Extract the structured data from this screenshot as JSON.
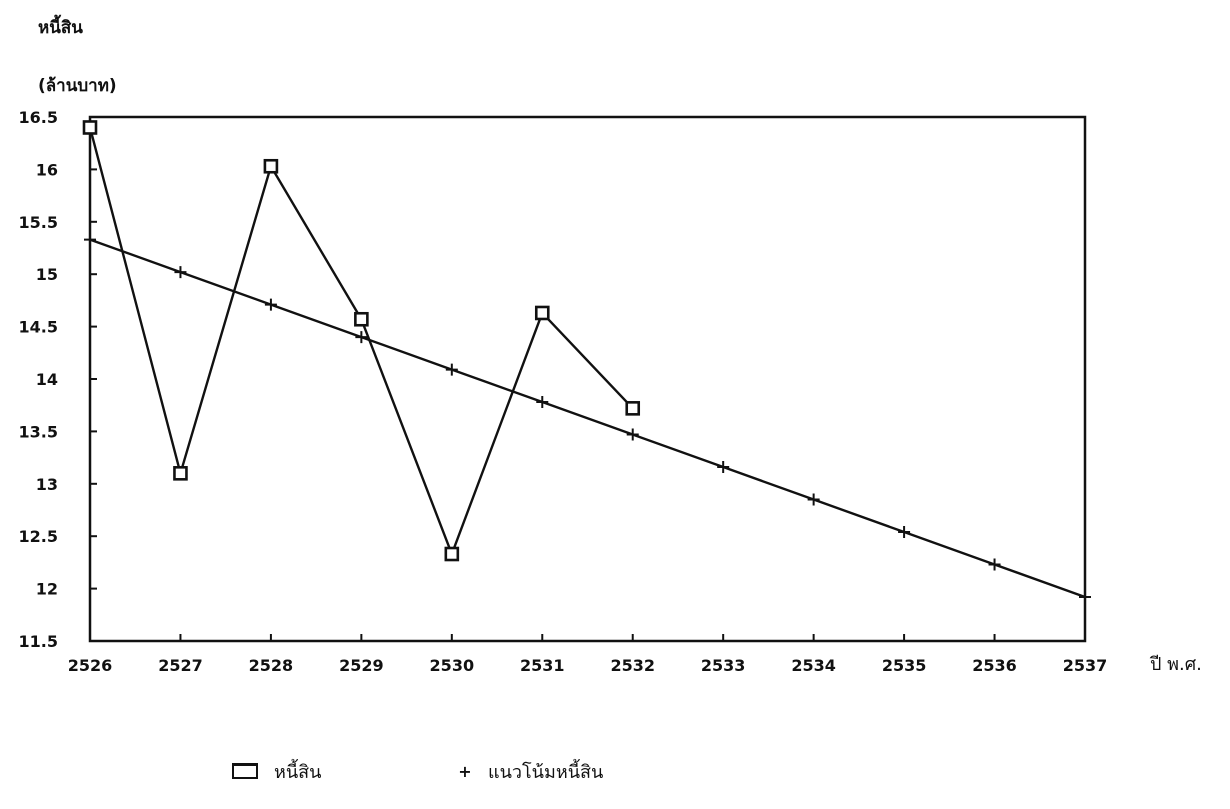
{
  "chart_data": {
    "type": "line",
    "title": "",
    "ylabel_line1": "หนี้สิน",
    "ylabel_line2": "(ล้านบาท)",
    "xlabel": "ปี พ.ศ.",
    "x": [
      2526,
      2527,
      2528,
      2529,
      2530,
      2531,
      2532,
      2533,
      2534,
      2535,
      2536,
      2537
    ],
    "xlim": [
      2526,
      2537
    ],
    "ylim": [
      11.5,
      16.5
    ],
    "yticks": [
      11.5,
      12,
      12.5,
      13,
      13.5,
      14,
      14.5,
      15,
      15.5,
      16,
      16.5
    ],
    "ytick_labels": [
      "11.5",
      "12",
      "12.5",
      "13",
      "13.5",
      "14",
      "14.5",
      "15",
      "15.5",
      "16",
      "16.5"
    ],
    "grid": false,
    "legend_position": "bottom",
    "series": [
      {
        "name": "หนี้สิน",
        "marker": "square",
        "x": [
          2526,
          2527,
          2528,
          2529,
          2530,
          2531,
          2532
        ],
        "values": [
          16.4,
          13.1,
          16.03,
          14.57,
          12.33,
          14.63,
          13.72
        ]
      },
      {
        "name": "แนวโน้มหนี้สิน",
        "marker": "plus",
        "x": [
          2526,
          2527,
          2528,
          2529,
          2530,
          2531,
          2532,
          2533,
          2534,
          2535,
          2536,
          2537
        ],
        "values": [
          15.33,
          15.02,
          14.71,
          14.4,
          14.09,
          13.78,
          13.47,
          13.16,
          12.85,
          12.54,
          12.23,
          11.92
        ]
      }
    ],
    "colors": {
      "line": "#111111",
      "background": "#ffffff"
    }
  }
}
